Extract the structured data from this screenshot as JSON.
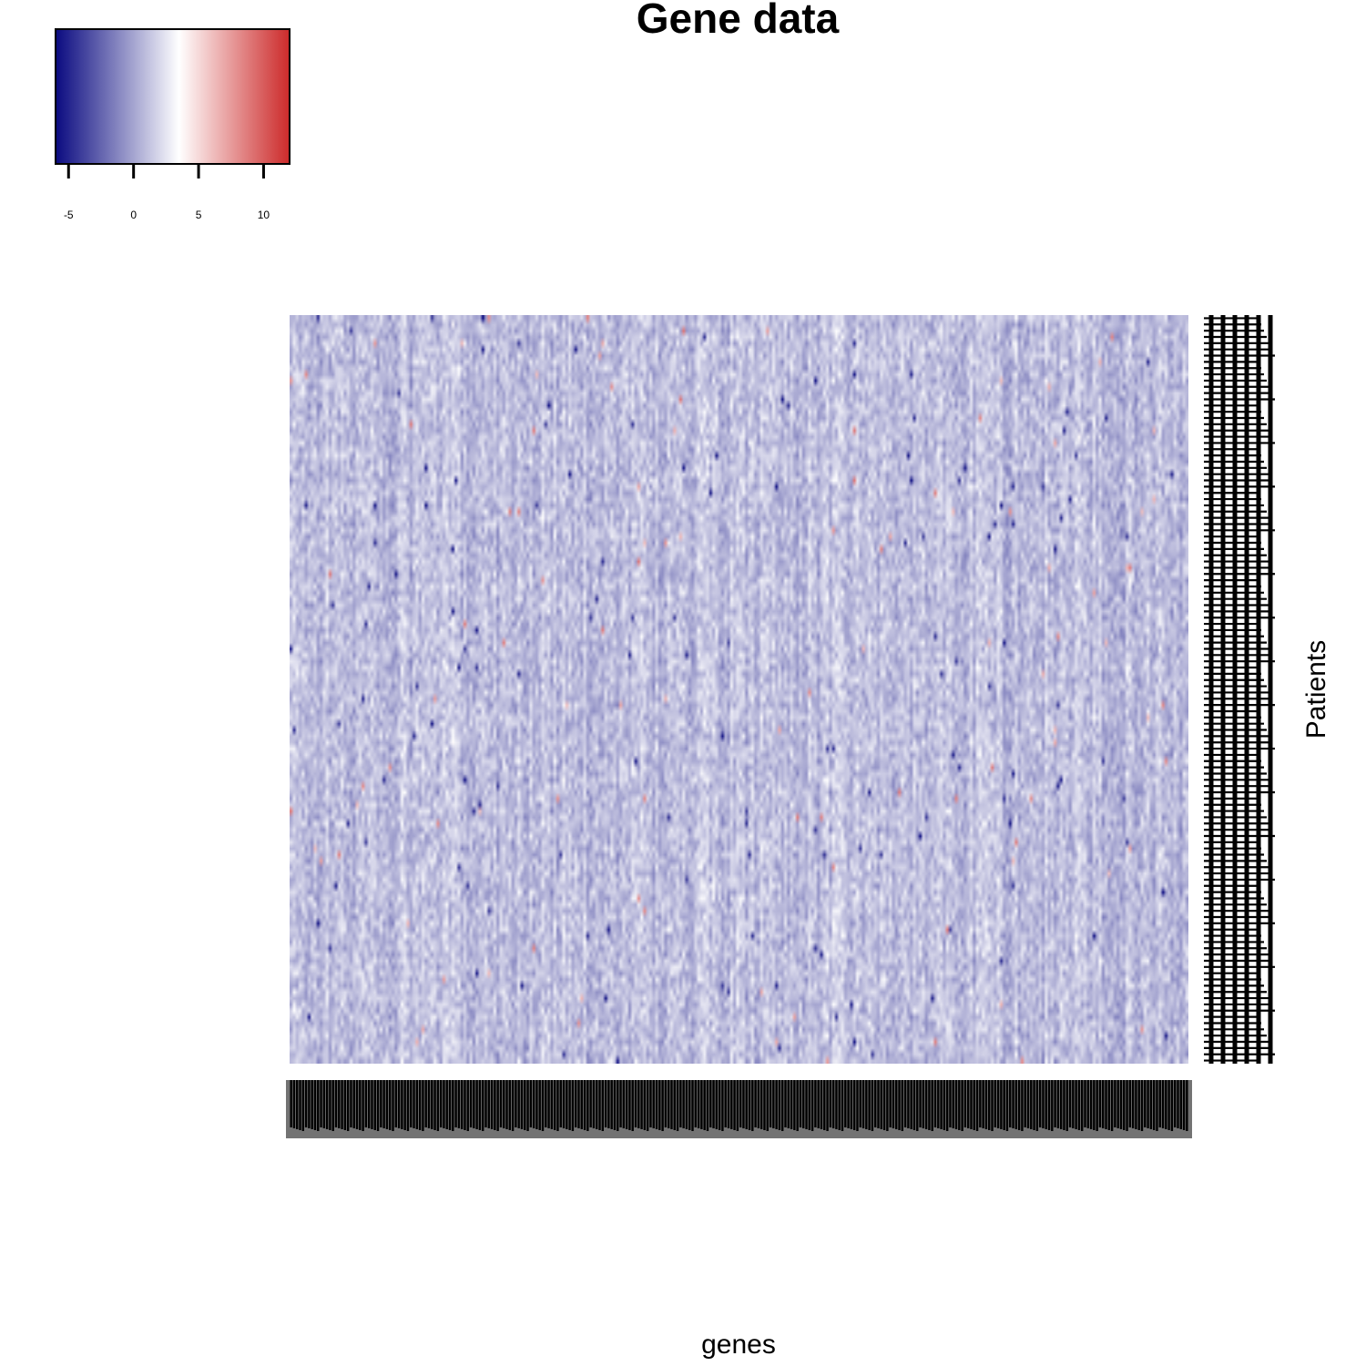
{
  "chart_data": {
    "type": "heatmap",
    "title": "Gene data",
    "xlabel": "genes",
    "ylabel": "Patients",
    "n_columns": 300,
    "n_rows": 120,
    "value_range": [
      -6,
      12
    ],
    "typical_value_range": [
      -1,
      3
    ],
    "colorscale": {
      "stops": [
        {
          "value": -6,
          "color": "#0a0a80"
        },
        {
          "value": 3.5,
          "color": "#ffffff"
        },
        {
          "value": 12,
          "color": "#cc2a2a"
        }
      ]
    },
    "color_key": {
      "ticks": [
        -5,
        0,
        5,
        10
      ],
      "tick_labels": [
        "-5",
        "0",
        "5",
        "10"
      ]
    },
    "column_labels_legible": false,
    "row_labels_legible": false,
    "legend_position": "top-left"
  },
  "colors": {
    "low": "#0a0a80",
    "mid": "#ffffff",
    "high": "#cc2a2a",
    "text": "#000000"
  }
}
